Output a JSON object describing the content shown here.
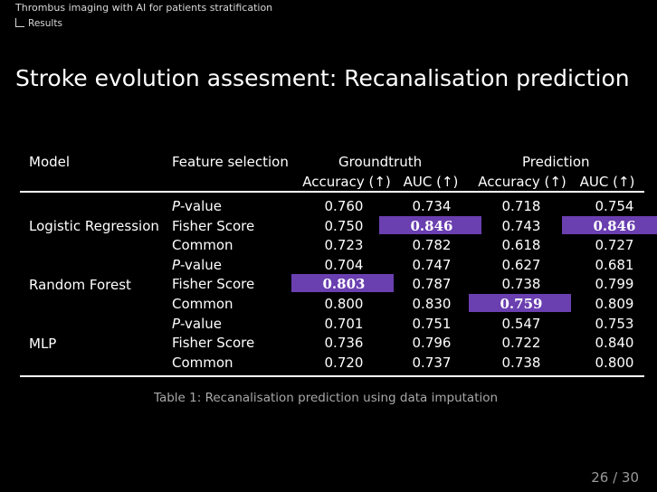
{
  "breadcrumb": {
    "section": "Thrombus imaging with AI for patients stratification",
    "subsection": "Results"
  },
  "title": "Stroke evolution assesment: Recanalisation prediction",
  "table": {
    "headers": {
      "model": "Model",
      "feature": "Feature selection",
      "group1": "Groundtruth",
      "group2": "Prediction",
      "acc": "Accuracy (↑)",
      "auc": "AUC (↑)"
    },
    "feature_prefix": "P",
    "models": [
      "Logistic Regression",
      "Random Forest",
      "MLP"
    ],
    "rows": [
      {
        "feature": "-value",
        "italic_p": true,
        "v": [
          "0.760",
          "0.734",
          "0.718",
          "0.754"
        ]
      },
      {
        "feature": "Fisher Score",
        "v": [
          "0.750",
          "0.846",
          "0.743",
          "0.846"
        ]
      },
      {
        "feature": "Common",
        "v": [
          "0.723",
          "0.782",
          "0.618",
          "0.727"
        ]
      },
      {
        "feature": "-value",
        "italic_p": true,
        "v": [
          "0.704",
          "0.747",
          "0.627",
          "0.681"
        ]
      },
      {
        "feature": "Fisher Score",
        "v": [
          "0.803",
          "0.787",
          "0.738",
          "0.799"
        ]
      },
      {
        "feature": "Common",
        "v": [
          "0.800",
          "0.830",
          "0.759",
          "0.809"
        ]
      },
      {
        "feature": "-value",
        "italic_p": true,
        "v": [
          "0.701",
          "0.751",
          "0.547",
          "0.753"
        ]
      },
      {
        "feature": "Fisher Score",
        "v": [
          "0.736",
          "0.796",
          "0.722",
          "0.840"
        ]
      },
      {
        "feature": "Common",
        "v": [
          "0.720",
          "0.737",
          "0.738",
          "0.800"
        ]
      }
    ],
    "highlighted": [
      [
        1,
        1
      ],
      [
        1,
        3
      ],
      [
        4,
        0
      ],
      [
        5,
        2
      ]
    ],
    "highlight_color": "#6a3fb0"
  },
  "caption": "Table 1: Recanalisation prediction using data imputation",
  "page": "26 / 30"
}
